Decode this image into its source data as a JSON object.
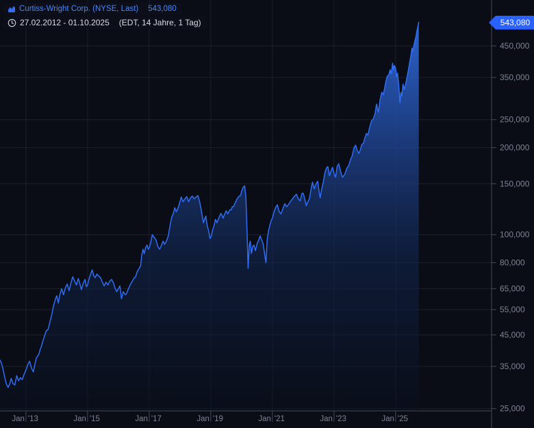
{
  "header": {
    "symbol_line": {
      "icon": "area-chart-icon",
      "title": "Curtiss-Wright Corp. (NYSE, Last)",
      "last_value": "543,080"
    },
    "range_line": {
      "icon": "clock-icon",
      "date_range": "27.02.2012 - 01.10.2025",
      "meta": "(EDT, 14 Jahre, 1 Tag)"
    }
  },
  "colors": {
    "background": "#0a0d15",
    "grid": "#1c2130",
    "axis_line": "#454b59",
    "axis_text": "#7d8494",
    "line": "#2f6df5",
    "accent": "#2962ff",
    "legend_symbol_text": "#4a85f6",
    "legend_date_text": "#d8dce5",
    "tag_text": "#ffffff",
    "area_stops": [
      [
        "0%",
        "rgba(47,105,218,0.95)"
      ],
      [
        "30%",
        "rgba(32,70,150,0.80)"
      ],
      [
        "60%",
        "rgba(18,38,80,0.62)"
      ],
      [
        "100%",
        "rgba(8,15,30,0.42)"
      ]
    ]
  },
  "chart_data": {
    "type": "area",
    "title": "Curtiss-Wright Corp. (NYSE, Last)",
    "xlabel": "",
    "ylabel": "",
    "y_scale": "log",
    "grid": true,
    "legend_position": "top-left",
    "x_unit": "decimal_year",
    "x_range": [
      2012.157,
      2025.753
    ],
    "x_range_label": "27.02.2012 - 01.10.2025",
    "y_axis_ticks": [
      {
        "value": 450,
        "label": "450,000"
      },
      {
        "value": 350,
        "label": "350,000"
      },
      {
        "value": 250,
        "label": "250,000"
      },
      {
        "value": 200,
        "label": "200,000"
      },
      {
        "value": 150,
        "label": "150,000"
      },
      {
        "value": 100,
        "label": "100,000"
      },
      {
        "value": 80,
        "label": "80,000"
      },
      {
        "value": 65,
        "label": "65,000"
      },
      {
        "value": 55,
        "label": "55,000"
      },
      {
        "value": 45,
        "label": "45,000"
      },
      {
        "value": 35,
        "label": "35,000"
      },
      {
        "value": 25,
        "label": "25,000"
      }
    ],
    "x_axis_ticks": [
      {
        "t": 2013,
        "month": "Jan",
        "year": "'13"
      },
      {
        "t": 2015,
        "month": "Jan",
        "year": "'15"
      },
      {
        "t": 2017,
        "month": "Jan",
        "year": "'17"
      },
      {
        "t": 2019,
        "month": "Jan",
        "year": "'19"
      },
      {
        "t": 2021,
        "month": "Jan",
        "year": "'21"
      },
      {
        "t": 2023,
        "month": "Jan",
        "year": "'23"
      },
      {
        "t": 2025,
        "month": "Jan",
        "year": "'25"
      }
    ],
    "last_value": 543.08,
    "last_value_label": "543,080",
    "series": [
      {
        "name": "Curtiss-Wright Corp. (NYSE, Last)",
        "points": [
          [
            2012.16,
            36.8
          ],
          [
            2012.2,
            36.0
          ],
          [
            2012.25,
            34.5
          ],
          [
            2012.3,
            32.5
          ],
          [
            2012.36,
            30.5
          ],
          [
            2012.42,
            29.6
          ],
          [
            2012.48,
            30.6
          ],
          [
            2012.52,
            31.8
          ],
          [
            2012.58,
            30.5
          ],
          [
            2012.64,
            30.2
          ],
          [
            2012.7,
            32.5
          ],
          [
            2012.76,
            31.2
          ],
          [
            2012.82,
            32.0
          ],
          [
            2012.88,
            31.5
          ],
          [
            2012.94,
            32.9
          ],
          [
            2013.0,
            34.0
          ],
          [
            2013.06,
            35.5
          ],
          [
            2013.12,
            36.5
          ],
          [
            2013.18,
            34.5
          ],
          [
            2013.24,
            33.5
          ],
          [
            2013.3,
            36.0
          ],
          [
            2013.38,
            38.0
          ],
          [
            2013.46,
            40.0
          ],
          [
            2013.54,
            42.5
          ],
          [
            2013.6,
            44.5
          ],
          [
            2013.66,
            46.5
          ],
          [
            2013.72,
            47.0
          ],
          [
            2013.78,
            50.0
          ],
          [
            2013.84,
            53.0
          ],
          [
            2013.9,
            57.0
          ],
          [
            2013.96,
            60.0
          ],
          [
            2014.0,
            61.5
          ],
          [
            2014.05,
            58.0
          ],
          [
            2014.1,
            62.0
          ],
          [
            2014.16,
            65.0
          ],
          [
            2014.22,
            62.0
          ],
          [
            2014.28,
            65.5
          ],
          [
            2014.34,
            67.5
          ],
          [
            2014.4,
            64.0
          ],
          [
            2014.46,
            68.0
          ],
          [
            2014.52,
            71.5
          ],
          [
            2014.58,
            69.0
          ],
          [
            2014.64,
            67.0
          ],
          [
            2014.7,
            70.5
          ],
          [
            2014.76,
            67.0
          ],
          [
            2014.8,
            64.5
          ],
          [
            2014.86,
            68.0
          ],
          [
            2014.92,
            70.0
          ],
          [
            2014.96,
            66.0
          ],
          [
            2015.0,
            67.0
          ],
          [
            2015.05,
            70.5
          ],
          [
            2015.1,
            73.0
          ],
          [
            2015.15,
            75.5
          ],
          [
            2015.2,
            72.0
          ],
          [
            2015.25,
            71.0
          ],
          [
            2015.3,
            73.0
          ],
          [
            2015.36,
            72.0
          ],
          [
            2015.42,
            71.0
          ],
          [
            2015.48,
            68.5
          ],
          [
            2015.54,
            66.5
          ],
          [
            2015.6,
            68.5
          ],
          [
            2015.66,
            67.0
          ],
          [
            2015.72,
            69.0
          ],
          [
            2015.78,
            70.0
          ],
          [
            2015.84,
            68.0
          ],
          [
            2015.9,
            65.0
          ],
          [
            2015.95,
            63.5
          ],
          [
            2016.0,
            65.0
          ],
          [
            2016.05,
            66.5
          ],
          [
            2016.1,
            60.0
          ],
          [
            2016.16,
            63.5
          ],
          [
            2016.22,
            62.0
          ],
          [
            2016.3,
            64.0
          ],
          [
            2016.38,
            67.0
          ],
          [
            2016.45,
            69.0
          ],
          [
            2016.52,
            71.0
          ],
          [
            2016.6,
            74.0
          ],
          [
            2016.66,
            76.0
          ],
          [
            2016.72,
            78.0
          ],
          [
            2016.76,
            85.0
          ],
          [
            2016.8,
            89.0
          ],
          [
            2016.84,
            86.0
          ],
          [
            2016.88,
            90.0
          ],
          [
            2016.93,
            92.0
          ],
          [
            2016.97,
            89.0
          ],
          [
            2017.0,
            90.0
          ],
          [
            2017.05,
            94.0
          ],
          [
            2017.1,
            100.0
          ],
          [
            2017.16,
            98.0
          ],
          [
            2017.22,
            96.0
          ],
          [
            2017.28,
            91.0
          ],
          [
            2017.34,
            89.0
          ],
          [
            2017.4,
            92.0
          ],
          [
            2017.45,
            95.0
          ],
          [
            2017.5,
            92.5
          ],
          [
            2017.56,
            95.0
          ],
          [
            2017.62,
            99.0
          ],
          [
            2017.68,
            108.0
          ],
          [
            2017.73,
            115.0
          ],
          [
            2017.78,
            118.0
          ],
          [
            2017.83,
            124.0
          ],
          [
            2017.88,
            120.0
          ],
          [
            2017.93,
            123.0
          ],
          [
            2017.97,
            127.0
          ],
          [
            2018.0,
            130.0
          ],
          [
            2018.04,
            135.0
          ],
          [
            2018.1,
            130.0
          ],
          [
            2018.16,
            133.0
          ],
          [
            2018.22,
            135.5
          ],
          [
            2018.28,
            130.0
          ],
          [
            2018.34,
            134.0
          ],
          [
            2018.4,
            136.0
          ],
          [
            2018.46,
            133.0
          ],
          [
            2018.52,
            135.0
          ],
          [
            2018.58,
            136.5
          ],
          [
            2018.64,
            130.0
          ],
          [
            2018.7,
            120.0
          ],
          [
            2018.76,
            110.0
          ],
          [
            2018.8,
            113.0
          ],
          [
            2018.84,
            116.0
          ],
          [
            2018.88,
            108.0
          ],
          [
            2018.93,
            103.0
          ],
          [
            2018.97,
            97.0
          ],
          [
            2019.02,
            99.0
          ],
          [
            2019.06,
            104.0
          ],
          [
            2019.1,
            107.0
          ],
          [
            2019.15,
            113.0
          ],
          [
            2019.2,
            110.0
          ],
          [
            2019.27,
            115.0
          ],
          [
            2019.33,
            118.5
          ],
          [
            2019.4,
            114.0
          ],
          [
            2019.45,
            118.0
          ],
          [
            2019.5,
            121.0
          ],
          [
            2019.55,
            118.0
          ],
          [
            2019.62,
            122.0
          ],
          [
            2019.7,
            125.0
          ],
          [
            2019.78,
            128.0
          ],
          [
            2019.85,
            133.0
          ],
          [
            2019.92,
            136.0
          ],
          [
            2020.0,
            141.0
          ],
          [
            2020.05,
            146.0
          ],
          [
            2020.1,
            147.5
          ],
          [
            2020.14,
            135.0
          ],
          [
            2020.18,
            100.0
          ],
          [
            2020.21,
            76.5
          ],
          [
            2020.25,
            92.0
          ],
          [
            2020.28,
            95.0
          ],
          [
            2020.32,
            86.0
          ],
          [
            2020.36,
            91.0
          ],
          [
            2020.4,
            92.0
          ],
          [
            2020.45,
            88.0
          ],
          [
            2020.5,
            93.0
          ],
          [
            2020.55,
            95.5
          ],
          [
            2020.6,
            99.0
          ],
          [
            2020.65,
            96.0
          ],
          [
            2020.7,
            93.0
          ],
          [
            2020.75,
            85.0
          ],
          [
            2020.79,
            80.0
          ],
          [
            2020.83,
            96.0
          ],
          [
            2020.87,
            103.0
          ],
          [
            2020.92,
            108.0
          ],
          [
            2020.96,
            112.0
          ],
          [
            2021.0,
            114.0
          ],
          [
            2021.05,
            120.0
          ],
          [
            2021.1,
            124.0
          ],
          [
            2021.16,
            127.0
          ],
          [
            2021.22,
            120.0
          ],
          [
            2021.28,
            118.0
          ],
          [
            2021.34,
            123.0
          ],
          [
            2021.4,
            128.0
          ],
          [
            2021.46,
            125.0
          ],
          [
            2021.52,
            127.0
          ],
          [
            2021.58,
            130.0
          ],
          [
            2021.65,
            133.0
          ],
          [
            2021.72,
            136.0
          ],
          [
            2021.78,
            138.0
          ],
          [
            2021.84,
            133.0
          ],
          [
            2021.9,
            131.0
          ],
          [
            2021.96,
            139.0
          ],
          [
            2022.0,
            139.0
          ],
          [
            2022.05,
            133.0
          ],
          [
            2022.1,
            126.0
          ],
          [
            2022.15,
            130.0
          ],
          [
            2022.2,
            133.0
          ],
          [
            2022.25,
            143.0
          ],
          [
            2022.3,
            152.0
          ],
          [
            2022.36,
            144.0
          ],
          [
            2022.42,
            150.0
          ],
          [
            2022.47,
            153.0
          ],
          [
            2022.52,
            140.0
          ],
          [
            2022.55,
            134.0
          ],
          [
            2022.6,
            144.0
          ],
          [
            2022.65,
            152.0
          ],
          [
            2022.7,
            163.0
          ],
          [
            2022.75,
            170.0
          ],
          [
            2022.8,
            172.0
          ],
          [
            2022.85,
            160.0
          ],
          [
            2022.9,
            166.0
          ],
          [
            2022.95,
            171.0
          ],
          [
            2023.0,
            163.0
          ],
          [
            2023.05,
            158.0
          ],
          [
            2023.1,
            172.0
          ],
          [
            2023.15,
            176.0
          ],
          [
            2023.2,
            168.0
          ],
          [
            2023.28,
            158.0
          ],
          [
            2023.35,
            162.0
          ],
          [
            2023.42,
            170.0
          ],
          [
            2023.5,
            176.0
          ],
          [
            2023.58,
            186.0
          ],
          [
            2023.65,
            200.0
          ],
          [
            2023.7,
            204.0
          ],
          [
            2023.75,
            196.0
          ],
          [
            2023.8,
            191.0
          ],
          [
            2023.85,
            196.0
          ],
          [
            2023.9,
            205.0
          ],
          [
            2024.0,
            216.0
          ],
          [
            2024.05,
            224.0
          ],
          [
            2024.1,
            221.0
          ],
          [
            2024.16,
            236.0
          ],
          [
            2024.22,
            248.0
          ],
          [
            2024.28,
            252.0
          ],
          [
            2024.33,
            262.0
          ],
          [
            2024.38,
            283.0
          ],
          [
            2024.44,
            265.0
          ],
          [
            2024.5,
            295.0
          ],
          [
            2024.55,
            311.0
          ],
          [
            2024.6,
            305.0
          ],
          [
            2024.64,
            320.0
          ],
          [
            2024.68,
            338.0
          ],
          [
            2024.72,
            352.0
          ],
          [
            2024.78,
            358.0
          ],
          [
            2024.82,
            372.0
          ],
          [
            2024.86,
            360.0
          ],
          [
            2024.9,
            392.0
          ],
          [
            2024.93,
            370.0
          ],
          [
            2024.96,
            385.0
          ],
          [
            2025.0,
            376.0
          ],
          [
            2025.03,
            352.0
          ],
          [
            2025.06,
            362.0
          ],
          [
            2025.1,
            330.0
          ],
          [
            2025.14,
            286.0
          ],
          [
            2025.17,
            310.0
          ],
          [
            2025.2,
            302.0
          ],
          [
            2025.24,
            332.0
          ],
          [
            2025.28,
            318.0
          ],
          [
            2025.32,
            330.0
          ],
          [
            2025.38,
            355.0
          ],
          [
            2025.44,
            385.0
          ],
          [
            2025.5,
            420.0
          ],
          [
            2025.53,
            442.0
          ],
          [
            2025.56,
            430.0
          ],
          [
            2025.6,
            456.0
          ],
          [
            2025.65,
            480.0
          ],
          [
            2025.7,
            512.0
          ],
          [
            2025.75,
            543.08
          ]
        ]
      }
    ]
  }
}
